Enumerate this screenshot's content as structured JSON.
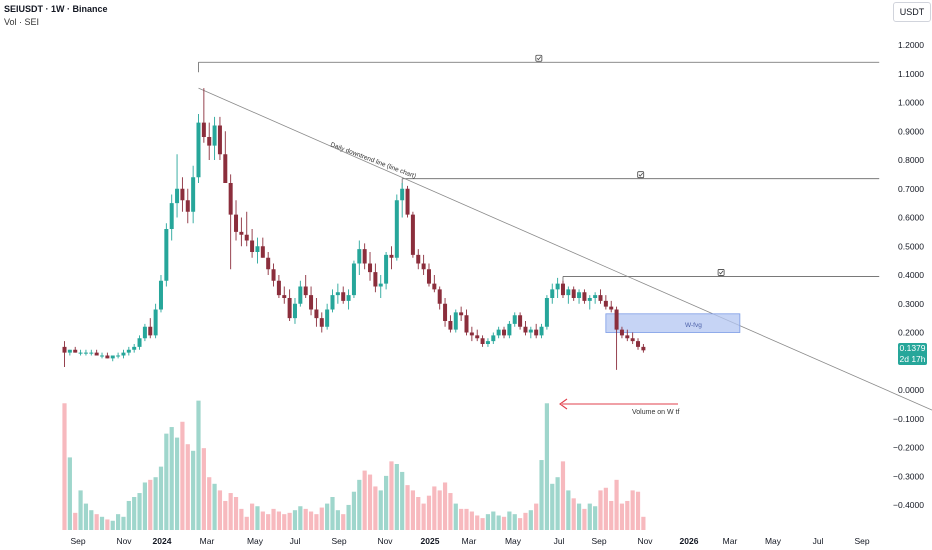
{
  "header": {
    "symbol_line": "SEIUSDT · 1W · Binance",
    "volume_line": "Vol · SEI"
  },
  "quote_unit": "USDT",
  "last_price": {
    "price": "0.1379",
    "countdown": "2d 17h"
  },
  "colors": {
    "up": "#26a69a",
    "down": "#8b2e3c",
    "vol_up": "#9fd6cc",
    "vol_down": "#f7b9be",
    "fvg_fill": "#b3c6f2",
    "fvg_stroke": "#7c9be6",
    "arrow": "#e0404c",
    "line": "#8a8a8a"
  },
  "annotations": {
    "trendline_label": "Daily downtrend line (line chart)",
    "fvg_label": "W-fvg",
    "volume_note": "Volume on W tf"
  },
  "chart_data": {
    "type": "candlestick",
    "y_axis": {
      "ticks": [
        "1.2000",
        "1.1000",
        "1.0000",
        "0.9000",
        "0.8000",
        "0.7000",
        "0.6000",
        "0.5000",
        "0.4000",
        "0.3000",
        "0.2000",
        "0.1000",
        "0.0000",
        "−0.1000",
        "−0.2000",
        "−0.3000",
        "−0.4000"
      ],
      "ylim": [
        -0.5,
        1.2
      ]
    },
    "x_axis": {
      "ticks": [
        {
          "label": "Sep",
          "bold": false
        },
        {
          "label": "Nov",
          "bold": false
        },
        {
          "label": "2024",
          "bold": true
        },
        {
          "label": "Mar",
          "bold": false
        },
        {
          "label": "May",
          "bold": false
        },
        {
          "label": "Jul",
          "bold": false
        },
        {
          "label": "Sep",
          "bold": false
        },
        {
          "label": "Nov",
          "bold": false
        },
        {
          "label": "2025",
          "bold": true
        },
        {
          "label": "Mar",
          "bold": false
        },
        {
          "label": "May",
          "bold": false
        },
        {
          "label": "Jul",
          "bold": false
        },
        {
          "label": "Sep",
          "bold": false
        },
        {
          "label": "Nov",
          "bold": false
        },
        {
          "label": "2026",
          "bold": true
        },
        {
          "label": "Mar",
          "bold": false
        },
        {
          "label": "May",
          "bold": false
        },
        {
          "label": "Jul",
          "bold": false
        },
        {
          "label": "Sep",
          "bold": false
        }
      ]
    },
    "candles": [
      [
        0.15,
        0.17,
        0.08,
        0.13
      ],
      [
        0.13,
        0.14,
        0.12,
        0.14
      ],
      [
        0.14,
        0.15,
        0.13,
        0.13
      ],
      [
        0.13,
        0.14,
        0.12,
        0.13
      ],
      [
        0.13,
        0.14,
        0.12,
        0.13
      ],
      [
        0.13,
        0.14,
        0.12,
        0.13
      ],
      [
        0.13,
        0.14,
        0.12,
        0.12
      ],
      [
        0.12,
        0.13,
        0.11,
        0.12
      ],
      [
        0.12,
        0.13,
        0.11,
        0.11
      ],
      [
        0.11,
        0.12,
        0.1,
        0.12
      ],
      [
        0.12,
        0.13,
        0.11,
        0.12
      ],
      [
        0.12,
        0.14,
        0.11,
        0.13
      ],
      [
        0.13,
        0.15,
        0.12,
        0.14
      ],
      [
        0.14,
        0.16,
        0.13,
        0.15
      ],
      [
        0.15,
        0.19,
        0.14,
        0.18
      ],
      [
        0.18,
        0.23,
        0.17,
        0.22
      ],
      [
        0.22,
        0.25,
        0.18,
        0.19
      ],
      [
        0.19,
        0.3,
        0.18,
        0.28
      ],
      [
        0.28,
        0.4,
        0.27,
        0.38
      ],
      [
        0.38,
        0.58,
        0.36,
        0.56
      ],
      [
        0.56,
        0.68,
        0.52,
        0.65
      ],
      [
        0.65,
        0.82,
        0.6,
        0.7
      ],
      [
        0.7,
        0.74,
        0.62,
        0.66
      ],
      [
        0.66,
        0.7,
        0.58,
        0.62
      ],
      [
        0.62,
        0.78,
        0.58,
        0.74
      ],
      [
        0.74,
        0.96,
        0.72,
        0.93
      ],
      [
        0.93,
        1.05,
        0.86,
        0.88
      ],
      [
        0.88,
        0.93,
        0.8,
        0.85
      ],
      [
        0.85,
        0.95,
        0.8,
        0.92
      ],
      [
        0.92,
        0.95,
        0.8,
        0.82
      ],
      [
        0.82,
        0.9,
        0.72,
        0.72
      ],
      [
        0.72,
        0.75,
        0.42,
        0.61
      ],
      [
        0.61,
        0.66,
        0.52,
        0.55
      ],
      [
        0.55,
        0.6,
        0.5,
        0.54
      ],
      [
        0.54,
        0.62,
        0.5,
        0.52
      ],
      [
        0.52,
        0.56,
        0.46,
        0.48
      ],
      [
        0.48,
        0.53,
        0.44,
        0.5
      ],
      [
        0.5,
        0.53,
        0.46,
        0.46
      ],
      [
        0.46,
        0.48,
        0.4,
        0.42
      ],
      [
        0.42,
        0.44,
        0.36,
        0.38
      ],
      [
        0.38,
        0.4,
        0.32,
        0.33
      ],
      [
        0.33,
        0.36,
        0.3,
        0.32
      ],
      [
        0.32,
        0.35,
        0.24,
        0.25
      ],
      [
        0.25,
        0.32,
        0.23,
        0.3
      ],
      [
        0.3,
        0.38,
        0.29,
        0.36
      ],
      [
        0.36,
        0.4,
        0.32,
        0.33
      ],
      [
        0.33,
        0.36,
        0.26,
        0.28
      ],
      [
        0.28,
        0.32,
        0.22,
        0.25
      ],
      [
        0.25,
        0.27,
        0.2,
        0.22
      ],
      [
        0.22,
        0.3,
        0.21,
        0.28
      ],
      [
        0.28,
        0.35,
        0.27,
        0.33
      ],
      [
        0.33,
        0.37,
        0.3,
        0.34
      ],
      [
        0.34,
        0.36,
        0.3,
        0.31
      ],
      [
        0.31,
        0.35,
        0.28,
        0.33
      ],
      [
        0.33,
        0.45,
        0.32,
        0.44
      ],
      [
        0.44,
        0.52,
        0.4,
        0.49
      ],
      [
        0.49,
        0.51,
        0.42,
        0.44
      ],
      [
        0.44,
        0.48,
        0.38,
        0.41
      ],
      [
        0.41,
        0.44,
        0.34,
        0.36
      ],
      [
        0.36,
        0.4,
        0.32,
        0.37
      ],
      [
        0.37,
        0.48,
        0.35,
        0.47
      ],
      [
        0.47,
        0.5,
        0.42,
        0.46
      ],
      [
        0.46,
        0.68,
        0.45,
        0.66
      ],
      [
        0.66,
        0.72,
        0.6,
        0.7
      ],
      [
        0.7,
        0.71,
        0.6,
        0.61
      ],
      [
        0.61,
        0.62,
        0.46,
        0.47
      ],
      [
        0.47,
        0.49,
        0.42,
        0.44
      ],
      [
        0.44,
        0.47,
        0.4,
        0.42
      ],
      [
        0.42,
        0.44,
        0.36,
        0.37
      ],
      [
        0.37,
        0.4,
        0.34,
        0.35
      ],
      [
        0.35,
        0.36,
        0.28,
        0.3
      ],
      [
        0.3,
        0.32,
        0.22,
        0.24
      ],
      [
        0.24,
        0.26,
        0.2,
        0.21
      ],
      [
        0.21,
        0.28,
        0.2,
        0.27
      ],
      [
        0.27,
        0.29,
        0.24,
        0.26
      ],
      [
        0.26,
        0.28,
        0.19,
        0.2
      ],
      [
        0.2,
        0.22,
        0.17,
        0.19
      ],
      [
        0.19,
        0.21,
        0.17,
        0.18
      ],
      [
        0.18,
        0.19,
        0.15,
        0.16
      ],
      [
        0.16,
        0.18,
        0.15,
        0.17
      ],
      [
        0.17,
        0.2,
        0.16,
        0.19
      ],
      [
        0.19,
        0.22,
        0.18,
        0.21
      ],
      [
        0.21,
        0.22,
        0.18,
        0.19
      ],
      [
        0.19,
        0.24,
        0.18,
        0.23
      ],
      [
        0.23,
        0.27,
        0.22,
        0.26
      ],
      [
        0.26,
        0.27,
        0.21,
        0.22
      ],
      [
        0.22,
        0.24,
        0.19,
        0.2
      ],
      [
        0.2,
        0.22,
        0.18,
        0.21
      ],
      [
        0.21,
        0.23,
        0.18,
        0.19
      ],
      [
        0.19,
        0.23,
        0.18,
        0.22
      ],
      [
        0.22,
        0.33,
        0.21,
        0.32
      ],
      [
        0.32,
        0.37,
        0.3,
        0.35
      ],
      [
        0.35,
        0.39,
        0.32,
        0.37
      ],
      [
        0.37,
        0.38,
        0.32,
        0.33
      ],
      [
        0.33,
        0.36,
        0.3,
        0.35
      ],
      [
        0.35,
        0.36,
        0.31,
        0.32
      ],
      [
        0.32,
        0.35,
        0.3,
        0.34
      ],
      [
        0.34,
        0.35,
        0.3,
        0.31
      ],
      [
        0.31,
        0.33,
        0.28,
        0.32
      ],
      [
        0.32,
        0.34,
        0.3,
        0.33
      ],
      [
        0.33,
        0.35,
        0.3,
        0.31
      ],
      [
        0.31,
        0.33,
        0.28,
        0.29
      ],
      [
        0.29,
        0.31,
        0.27,
        0.28
      ],
      [
        0.28,
        0.29,
        0.07,
        0.21
      ],
      [
        0.21,
        0.22,
        0.18,
        0.19
      ],
      [
        0.19,
        0.21,
        0.17,
        0.18
      ],
      [
        0.18,
        0.2,
        0.16,
        0.17
      ],
      [
        0.17,
        0.18,
        0.14,
        0.15
      ],
      [
        0.15,
        0.16,
        0.13,
        0.138
      ]
    ],
    "volume_relative": [
      0.96,
      0.55,
      0.13,
      0.3,
      0.2,
      0.15,
      0.12,
      0.1,
      0.08,
      0.07,
      0.12,
      0.1,
      0.22,
      0.25,
      0.28,
      0.36,
      0.38,
      0.4,
      0.48,
      0.73,
      0.78,
      0.7,
      0.82,
      0.65,
      0.6,
      0.98,
      0.62,
      0.4,
      0.35,
      0.3,
      0.22,
      0.28,
      0.25,
      0.16,
      0.1,
      0.2,
      0.18,
      0.14,
      0.12,
      0.16,
      0.14,
      0.12,
      0.13,
      0.15,
      0.18,
      0.16,
      0.14,
      0.12,
      0.17,
      0.2,
      0.25,
      0.15,
      0.12,
      0.19,
      0.29,
      0.38,
      0.45,
      0.42,
      0.33,
      0.3,
      0.41,
      0.52,
      0.5,
      0.44,
      0.34,
      0.3,
      0.25,
      0.2,
      0.26,
      0.33,
      0.3,
      0.36,
      0.28,
      0.2,
      0.16,
      0.16,
      0.14,
      0.11,
      0.09,
      0.12,
      0.14,
      0.11,
      0.1,
      0.14,
      0.12,
      0.09,
      0.13,
      0.15,
      0.2,
      0.53,
      0.96,
      0.35,
      0.4,
      0.52,
      0.3,
      0.24,
      0.2,
      0.16,
      0.2,
      0.18,
      0.3,
      0.32,
      0.22,
      0.38,
      0.2,
      0.22,
      0.3,
      0.29,
      0.1
    ],
    "horizontal_levels": [
      {
        "from_index": 25,
        "price": 1.14,
        "to_index": 152
      },
      {
        "from_index": 63,
        "price": 0.735,
        "to_index": 152
      },
      {
        "from_index": 93,
        "price": 0.395,
        "to_index": 152
      }
    ],
    "trendline": {
      "from_index": 25,
      "from_price": 1.05,
      "to_index": 179,
      "to_price": -0.21
    },
    "fvg_zone": {
      "from_index": 101,
      "to_index": 126,
      "top": 0.265,
      "bottom": 0.2
    }
  }
}
